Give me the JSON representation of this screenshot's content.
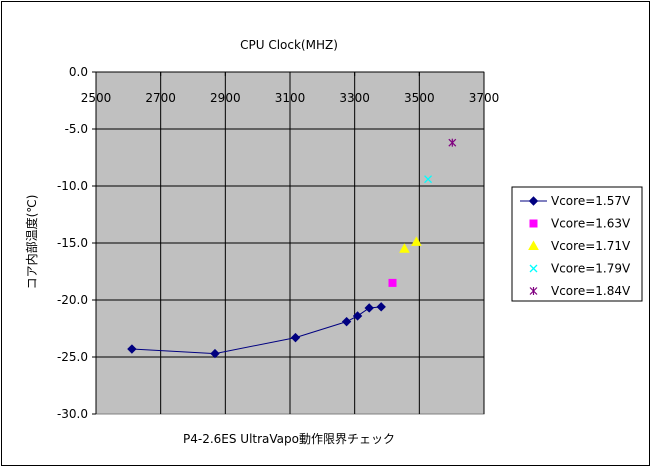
{
  "chart_data": {
    "type": "scatter",
    "title": "CPU Clock(MHZ)",
    "xlabel": "P4-2.6ES UltraVapo動作限界チェック",
    "ylabel": "コア内部温度(℃)",
    "xlim": [
      2500,
      3700
    ],
    "ylim": [
      -30,
      0
    ],
    "x_ticks": [
      2500,
      2700,
      2900,
      3100,
      3300,
      3500,
      3700
    ],
    "y_ticks": [
      0,
      -5,
      -10,
      -15,
      -20,
      -25,
      -30
    ],
    "x_tick_labels": [
      "2500",
      "2700",
      "2900",
      "3100",
      "3300",
      "3500",
      "3700"
    ],
    "y_tick_labels": [
      "0.0",
      "-5.0",
      "-10.0",
      "-15.0",
      "-20.0",
      "-25.0",
      "-30.0"
    ],
    "grid": true,
    "legend_position": "right",
    "plot_background": "#c0c0c0",
    "series": [
      {
        "name": "Vcore=1.57V",
        "color": "#000080",
        "marker": "diamond",
        "line": true,
        "points": [
          [
            2611,
            -24.3
          ],
          [
            2868,
            -24.7
          ],
          [
            3117,
            -23.3
          ],
          [
            3275,
            -21.9
          ],
          [
            3309,
            -21.4
          ],
          [
            3345,
            -20.7
          ],
          [
            3382,
            -20.6
          ]
        ]
      },
      {
        "name": "Vcore=1.63V",
        "color": "#ff00ff",
        "marker": "square",
        "line": false,
        "points": [
          [
            3417,
            -18.5
          ]
        ]
      },
      {
        "name": "Vcore=1.71V",
        "color": "#ffff00",
        "marker": "triangle",
        "line": false,
        "points": [
          [
            3454,
            -15.5
          ],
          [
            3491,
            -14.9
          ]
        ]
      },
      {
        "name": "Vcore=1.79V",
        "color": "#00ffff",
        "marker": "x",
        "line": false,
        "points": [
          [
            3527,
            -9.4
          ]
        ]
      },
      {
        "name": "Vcore=1.84V",
        "color": "#800080",
        "marker": "star",
        "line": false,
        "points": [
          [
            3602,
            -6.2
          ]
        ]
      }
    ]
  }
}
